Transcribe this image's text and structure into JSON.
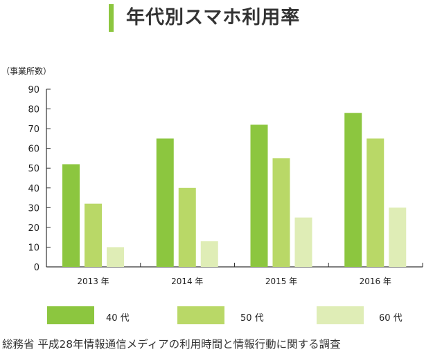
{
  "title": "年代別スマホ利用率",
  "source": "総務省 平成28年情報通信メディアの利用時間と情報行動に関する調査",
  "colors": {
    "accent": "#8cc63f",
    "axis": "#333333"
  },
  "chart_data": {
    "type": "bar",
    "title": "年代別スマホ利用率",
    "ylabel": "（事業所数）",
    "xlabel": "",
    "ylim": [
      0,
      90
    ],
    "yticks": [
      0,
      10,
      20,
      30,
      40,
      50,
      60,
      70,
      80,
      90
    ],
    "grid": false,
    "legend_position": "bottom",
    "categories": [
      "2013 年",
      "2014 年",
      "2015 年",
      "2016 年"
    ],
    "series": [
      {
        "name": "40 代",
        "color": "#8cc63f",
        "values": [
          52,
          65,
          72,
          78
        ]
      },
      {
        "name": "50 代",
        "color": "#b9d867",
        "values": [
          32,
          40,
          55,
          65
        ]
      },
      {
        "name": "60 代",
        "color": "#dfedb6",
        "values": [
          10,
          13,
          25,
          30
        ]
      }
    ]
  }
}
